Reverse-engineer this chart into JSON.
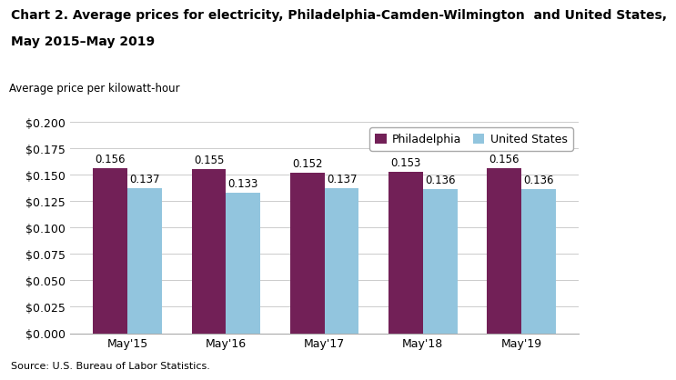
{
  "title_line1": "Chart 2. Average prices for electricity, Philadelphia-Camden-Wilmington  and United States,",
  "title_line2": "May 2015–May 2019",
  "ylabel": "Average price per kilowatt-hour",
  "source": "Source: U.S. Bureau of Labor Statistics.",
  "categories": [
    "May'15",
    "May'16",
    "May'17",
    "May'18",
    "May'19"
  ],
  "philadelphia_values": [
    0.156,
    0.155,
    0.152,
    0.153,
    0.156
  ],
  "us_values": [
    0.137,
    0.133,
    0.137,
    0.136,
    0.136
  ],
  "philadelphia_color": "#722057",
  "us_color": "#92C5DE",
  "ylim": [
    0,
    0.2
  ],
  "yticks": [
    0.0,
    0.025,
    0.05,
    0.075,
    0.1,
    0.125,
    0.15,
    0.175,
    0.2
  ],
  "legend_labels": [
    "Philadelphia",
    "United States"
  ],
  "bar_width": 0.35,
  "title_fontsize": 10,
  "axis_label_fontsize": 8.5,
  "tick_fontsize": 9,
  "annotation_fontsize": 8.5,
  "legend_fontsize": 9,
  "source_fontsize": 8,
  "background_color": "#ffffff",
  "grid_color": "#cccccc"
}
